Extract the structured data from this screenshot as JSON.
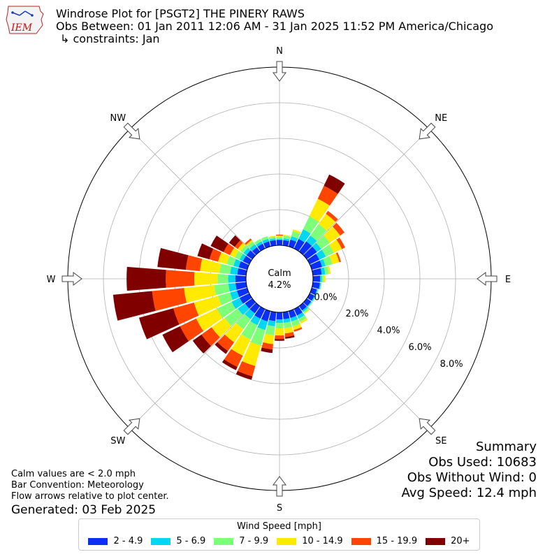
{
  "header": {
    "title_line1": "Windrose Plot for [PSGT2] THE PINERY RAWS",
    "title_line2": "Obs Between: 01 Jan 2011 12:06 AM - 31 Jan 2025 11:52 PM America/Chicago",
    "title_line3": "↳ constraints: Jan",
    "logo_text": "IEM"
  },
  "notes": {
    "line1": "Calm values are < 2.0 mph",
    "line2": "Bar Convention: Meteorology",
    "line3": "Flow arrows relative to plot center.",
    "generated": "Generated: 03 Feb 2025"
  },
  "summary": {
    "title": "Summary",
    "obs_used": "Obs Used: 10683",
    "obs_without_wind": "Obs Without Wind: 0",
    "avg_speed": "Avg Speed: 12.4 mph"
  },
  "chart_data": {
    "type": "windrose",
    "calm_label": "Calm",
    "calm_value": "4.2%",
    "directions": [
      "N",
      "NE",
      "E",
      "SE",
      "S",
      "SW",
      "W",
      "NW"
    ],
    "ring_labels": [
      "0.0%",
      "2.0%",
      "4.0%",
      "6.0%",
      "8.0%"
    ],
    "ring_values": [
      0,
      2,
      4,
      6,
      8
    ],
    "rmax": 10.0,
    "calm_pct": 4.2,
    "legend_title": "Wind Speed [mph]",
    "bins": [
      "2 - 4.9",
      "5 - 6.9",
      "7 - 9.9",
      "10 - 14.9",
      "15 - 19.9",
      "20+"
    ],
    "colors": [
      "#0a2ff5",
      "#00d7f0",
      "#7dff7a",
      "#ffea00",
      "#ff4500",
      "#800000"
    ],
    "sectors_deg": [
      0,
      10,
      20,
      30,
      40,
      50,
      60,
      70,
      80,
      90,
      100,
      110,
      120,
      130,
      140,
      150,
      160,
      170,
      180,
      190,
      200,
      210,
      220,
      230,
      240,
      250,
      260,
      270,
      280,
      290,
      300,
      310,
      320,
      330,
      340,
      350
    ],
    "cumulative_pct": [
      [
        0.3,
        0.35,
        0.45,
        0.55,
        0.6,
        0.6
      ],
      [
        0.3,
        0.4,
        0.55,
        0.6,
        0.6,
        0.6
      ],
      [
        0.4,
        0.6,
        0.9,
        1.0,
        1.0,
        1.0
      ],
      [
        0.6,
        1.2,
        2.0,
        3.1,
        3.9,
        4.6
      ],
      [
        0.7,
        1.1,
        1.9,
        2.6,
        2.8,
        2.8
      ],
      [
        0.7,
        1.0,
        1.6,
        2.3,
        2.6,
        2.6
      ],
      [
        0.6,
        1.0,
        1.5,
        2.0,
        2.2,
        2.2
      ],
      [
        0.6,
        0.8,
        1.2,
        1.6,
        1.7,
        1.7
      ],
      [
        0.5,
        0.7,
        0.9,
        1.0,
        1.0,
        1.0
      ],
      [
        0.4,
        0.5,
        0.6,
        0.7,
        0.7,
        0.7
      ],
      [
        0.4,
        0.45,
        0.5,
        0.5,
        0.5,
        0.5
      ],
      [
        0.3,
        0.35,
        0.4,
        0.4,
        0.4,
        0.4
      ],
      [
        0.3,
        0.35,
        0.4,
        0.4,
        0.4,
        0.4
      ],
      [
        0.3,
        0.35,
        0.4,
        0.4,
        0.4,
        0.4
      ],
      [
        0.3,
        0.4,
        0.5,
        0.55,
        0.55,
        0.55
      ],
      [
        0.4,
        0.6,
        0.8,
        0.9,
        0.9,
        0.9
      ],
      [
        0.4,
        0.6,
        0.9,
        1.1,
        1.2,
        1.2
      ],
      [
        0.4,
        0.6,
        0.9,
        1.2,
        1.4,
        1.5
      ],
      [
        0.4,
        0.6,
        0.9,
        1.3,
        1.5,
        1.6
      ],
      [
        0.5,
        0.8,
        1.3,
        1.8,
        2.1,
        2.3
      ],
      [
        0.6,
        1.1,
        2.0,
        3.2,
        3.8,
        4.0
      ],
      [
        0.6,
        1.0,
        1.9,
        2.9,
        3.6,
        3.8
      ],
      [
        0.5,
        0.9,
        1.6,
        2.5,
        3.1,
        3.3
      ],
      [
        0.5,
        1.0,
        1.9,
        2.8,
        3.5,
        4.1
      ],
      [
        0.6,
        1.1,
        2.0,
        3.3,
        4.3,
        5.4
      ],
      [
        0.6,
        1.0,
        1.7,
        3.1,
        4.3,
        6.3
      ],
      [
        0.6,
        1.0,
        1.8,
        3.5,
        5.3,
        7.5
      ],
      [
        0.6,
        1.0,
        1.6,
        2.9,
        4.5,
        6.7
      ],
      [
        0.5,
        0.9,
        1.5,
        2.6,
        3.4,
        5.0
      ],
      [
        0.5,
        0.8,
        1.2,
        1.7,
        2.2,
        2.9
      ],
      [
        0.4,
        0.6,
        0.9,
        1.2,
        1.6,
        2.4
      ],
      [
        0.4,
        0.6,
        0.8,
        1.0,
        1.2,
        1.6
      ],
      [
        0.3,
        0.5,
        0.7,
        0.8,
        0.9,
        0.9
      ],
      [
        0.3,
        0.45,
        0.6,
        0.6,
        0.6,
        0.6
      ],
      [
        0.3,
        0.45,
        0.6,
        0.6,
        0.6,
        0.6
      ],
      [
        0.3,
        0.4,
        0.5,
        0.55,
        0.55,
        0.55
      ]
    ]
  }
}
